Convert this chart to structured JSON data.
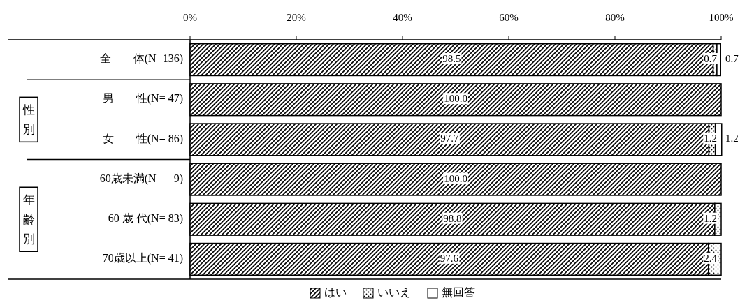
{
  "chart_data": {
    "type": "bar",
    "orientation": "horizontal",
    "stacked": true,
    "categories": [
      "全　　体(N=136)",
      "男　　性(N= 47)",
      "女　　性(N= 86)",
      "60歳未満(N=　9)",
      "60 歳 代(N= 83)",
      "70歳以上(N= 41)"
    ],
    "series": [
      {
        "name": "はい",
        "color": "#000000",
        "values": [
          98.5,
          100.0,
          97.7,
          100.0,
          98.8,
          97.6
        ],
        "value_labels": [
          "98.5",
          "100.0",
          "97.7",
          "100.0",
          "98.8",
          "97.6"
        ]
      },
      {
        "name": "いいえ",
        "color": "#000000",
        "values": [
          0.7,
          0,
          1.2,
          0,
          1.2,
          2.4
        ],
        "value_labels": [
          "0.7",
          null,
          "1.2",
          null,
          "1.2",
          "2.4"
        ]
      },
      {
        "name": "無回答",
        "color": "#ffffff",
        "values": [
          0.7,
          0,
          1.2,
          0,
          0,
          0
        ],
        "value_labels": [
          "0.7",
          null,
          "1.2",
          null,
          null,
          null
        ]
      }
    ],
    "xlim": [
      0,
      100
    ],
    "xticks": [
      {
        "value": 0,
        "label": "0%"
      },
      {
        "value": 20,
        "label": "20%"
      },
      {
        "value": 40,
        "label": "40%"
      },
      {
        "value": 60,
        "label": "60%"
      },
      {
        "value": 80,
        "label": "80%"
      },
      {
        "value": 100,
        "label": "100%"
      }
    ],
    "legend": "bottom",
    "annotations": [
      "性別",
      "年齢別"
    ]
  }
}
